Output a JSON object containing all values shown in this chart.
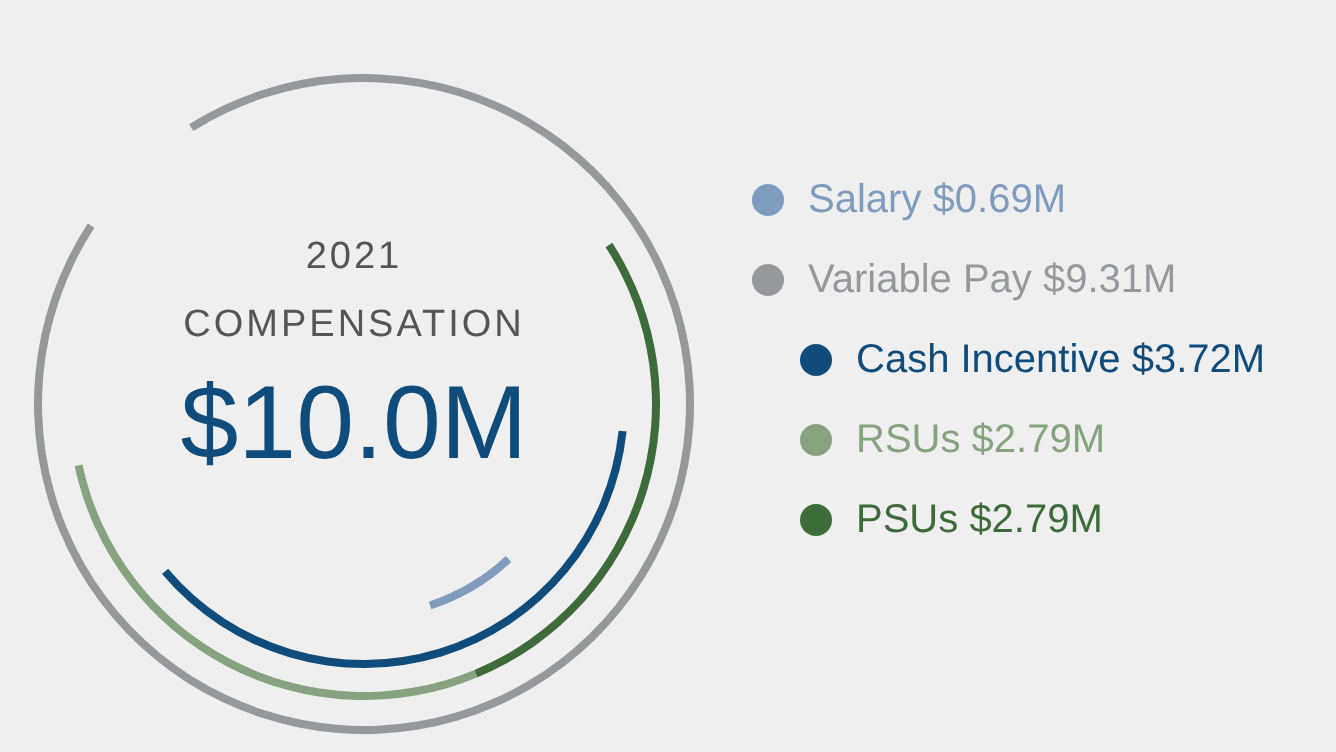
{
  "chart_data": {
    "type": "other",
    "title": "2021 COMPENSATION",
    "annotations": [
      "$10.0M"
    ],
    "categories": [
      "Salary",
      "Variable Pay",
      "Cash Incentive",
      "RSUs",
      "PSUs"
    ],
    "values": [
      0.69,
      9.31,
      3.72,
      2.79,
      2.79
    ],
    "value_labels": [
      "$0.69M",
      "$9.31M",
      "$3.72M",
      "$2.79M",
      "$2.79M"
    ],
    "colors": [
      "#7f9cbf",
      "#97989b",
      "#0f4c7c",
      "#86a37f",
      "#3e6b3a"
    ]
  }
}
